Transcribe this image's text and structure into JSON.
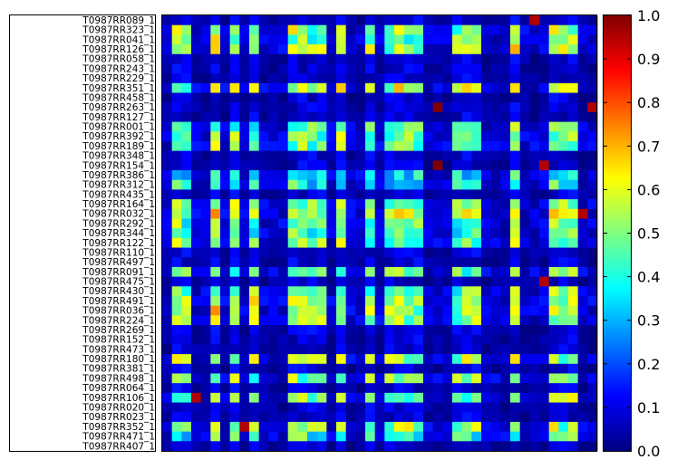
{
  "chart_data": {
    "type": "heatmap",
    "title": "",
    "xlabel": "",
    "ylabel": "",
    "rows": [
      "T0987RR089_1",
      "T0987RR323_1",
      "T0987RR041_1",
      "T0987RR126_1",
      "T0987RR058_1",
      "T0987RR243_1",
      "T0987RR229_1",
      "T0987RR351_1",
      "T0987RR458_1",
      "T0987RR263_1",
      "T0987RR127_1",
      "T0987RR001_1",
      "T0987RR392_1",
      "T0987RR189_1",
      "T0987RR348_1",
      "T0987RR154_1",
      "T0987RR386_1",
      "T0987RR312_1",
      "T0987RR435_1",
      "T0987RR164_1",
      "T0987RR032_1",
      "T0987RR292_1",
      "T0987RR344_1",
      "T0987RR122_1",
      "T0987RR110_1",
      "T0987RR497_1",
      "T0987RR091_1",
      "T0987RR475_1",
      "T0987RR430_1",
      "T0987RR491_1",
      "T0987RR036_1",
      "T0987RR224_1",
      "T0987RR269_1",
      "T0987RR152_1",
      "T0987RR473_1",
      "T0987RR180_1",
      "T0987RR381_1",
      "T0987RR498_1",
      "T0987RR064_1",
      "T0987RR106_1",
      "T0987RR020_1",
      "T0987RR023_1",
      "T0987RR352_1",
      "T0987RR471_1",
      "T0987RR407_1"
    ],
    "columns_count": 45,
    "colorbar": {
      "min": 0.0,
      "max": 1.0,
      "ticks": [
        "0.0",
        "0.1",
        "0.2",
        "0.3",
        "0.4",
        "0.5",
        "0.6",
        "0.7",
        "0.8",
        "0.9",
        "1.0"
      ],
      "colormap": "jet"
    },
    "notes": "Matrix of pairwise values 0-1; heavy rows/columns at ~0.3-0.6, sparse 1.0 cells"
  }
}
